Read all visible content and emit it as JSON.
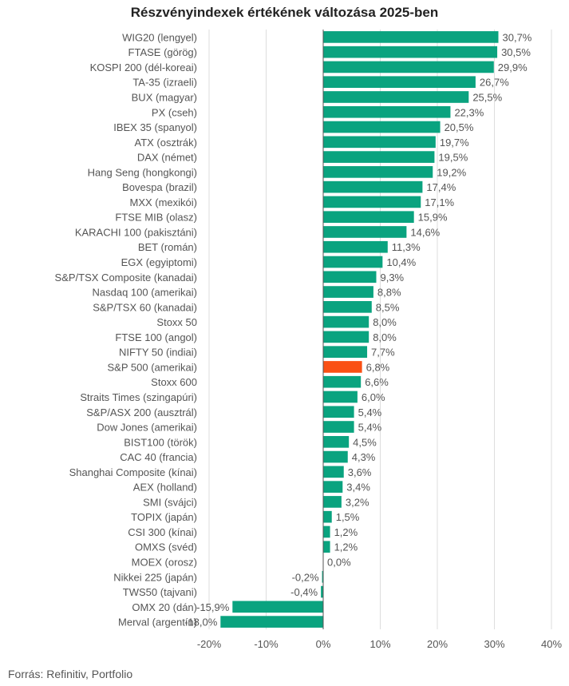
{
  "chart_data": {
    "type": "bar",
    "orientation": "horizontal",
    "title": "Részvényindexek értékének változása 2025-ben",
    "source": "Forrás: Refinitiv, Portfolio",
    "categories": [
      "WIG20 (lengyel)",
      "FTASE (görög)",
      "KOSPI 200 (dél-koreai)",
      "TA-35 (izraeli)",
      "BUX (magyar)",
      "PX (cseh)",
      "IBEX 35 (spanyol)",
      "ATX (osztrák)",
      "DAX (német)",
      "Hang Seng (hongkongi)",
      "Bovespa (brazil)",
      "MXX (mexikói)",
      "FTSE MIB (olasz)",
      "KARACHI 100 (pakisztáni)",
      "BET (román)",
      "EGX (egyiptomi)",
      "S&P/TSX Composite (kanadai)",
      "Nasdaq 100 (amerikai)",
      "S&P/TSX 60 (kanadai)",
      "Stoxx 50",
      "FTSE 100 (angol)",
      "NIFTY 50 (indiai)",
      "S&P 500 (amerikai)",
      "Stoxx 600",
      "Straits Times (szingapúri)",
      "S&P/ASX 200 (ausztrál)",
      "Dow Jones (amerikai)",
      "BIST100 (török)",
      "CAC 40 (francia)",
      "Shanghai Composite (kínai)",
      "AEX (holland)",
      "SMI (svájci)",
      "TOPIX (japán)",
      "CSI 300 (kínai)",
      "OMXS (svéd)",
      "MOEX (orosz)",
      "Nikkei 225 (japán)",
      "TWS50 (tajvani)",
      "OMX 20 (dán)",
      "Merval (argentín)"
    ],
    "values": [
      30.7,
      30.5,
      29.9,
      26.7,
      25.5,
      22.3,
      20.5,
      19.7,
      19.5,
      19.2,
      17.4,
      17.1,
      15.9,
      14.6,
      11.3,
      10.4,
      9.3,
      8.8,
      8.5,
      8.0,
      8.0,
      7.7,
      6.8,
      6.6,
      6.0,
      5.4,
      5.4,
      4.5,
      4.3,
      3.6,
      3.4,
      3.2,
      1.5,
      1.2,
      1.2,
      0.0,
      -0.2,
      -0.4,
      -15.9,
      -18.0
    ],
    "value_labels": [
      "30,7%",
      "30,5%",
      "29,9%",
      "26,7%",
      "25,5%",
      "22,3%",
      "20,5%",
      "19,7%",
      "19,5%",
      "19,2%",
      "17,4%",
      "17,1%",
      "15,9%",
      "14,6%",
      "11,3%",
      "10,4%",
      "9,3%",
      "8,8%",
      "8,5%",
      "8,0%",
      "8,0%",
      "7,7%",
      "6,8%",
      "6,6%",
      "6,0%",
      "5,4%",
      "5,4%",
      "4,5%",
      "4,3%",
      "3,6%",
      "3,4%",
      "3,2%",
      "1,5%",
      "1,2%",
      "1,2%",
      "0,0%",
      "-0,2%",
      "-0,4%",
      "-15,9%",
      "-18,0%"
    ],
    "highlight_category": "S&P 500 (amerikai)",
    "xlim": [
      -20,
      40
    ],
    "x_ticks": [
      -20,
      -10,
      0,
      10,
      20,
      30,
      40
    ],
    "x_tick_labels": [
      "-20%",
      "-10%",
      "0%",
      "10%",
      "20%",
      "30%",
      "40%"
    ],
    "grid": true,
    "colors": {
      "bar": "#0aa37f",
      "highlight": "#fa5014",
      "grid": "#dddddd",
      "zero_line": "#555555",
      "text": "#555555"
    }
  }
}
